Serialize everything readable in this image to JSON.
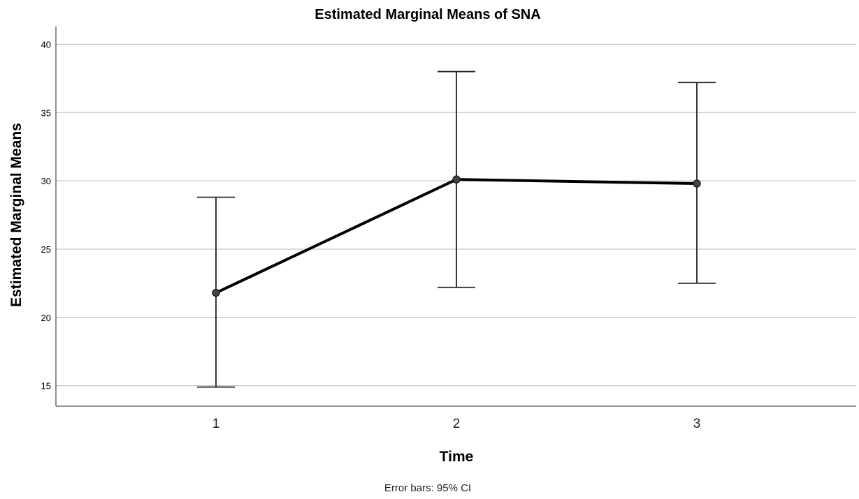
{
  "chart_data": {
    "type": "line",
    "title": "Estimated Marginal Means of SNA",
    "xlabel": "Time",
    "ylabel": "Estimated Marginal Means",
    "categories": [
      "1",
      "2",
      "3"
    ],
    "ylim": [
      13.5,
      41.3
    ],
    "yticks": [
      "15",
      "20",
      "25",
      "30",
      "35",
      "40"
    ],
    "grid": true,
    "series": [
      {
        "values": [
          21.8,
          30.1,
          29.8
        ],
        "ci_lower": [
          14.9,
          22.2,
          22.5
        ],
        "ci_upper": [
          28.8,
          38.0,
          37.2
        ]
      }
    ],
    "footnote": "Error bars: 95% CI"
  }
}
